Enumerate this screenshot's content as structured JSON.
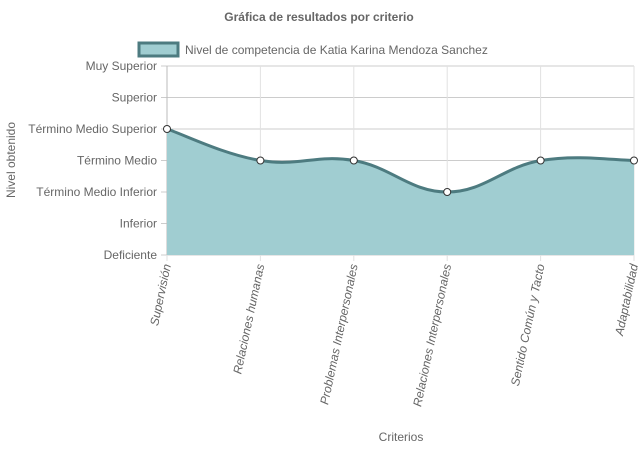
{
  "chart_data": {
    "type": "area",
    "title": "Gráfica de resultados por criterio",
    "xlabel": "Criterios",
    "ylabel": "Nivel obtenido",
    "categories": [
      "Supervisión",
      "Relaciones humanas",
      "Problemas Interpersonales",
      "Relaciones Interpersonales",
      "Sentido Común y Tacto",
      "Adaptabilidad"
    ],
    "y_levels": [
      "Deficiente",
      "Inferior",
      "Término Medio Inferior",
      "Término Medio",
      "Término Medio Superior",
      "Superior",
      "Muy Superior"
    ],
    "ylim": [
      0,
      6
    ],
    "series": [
      {
        "name": "Nivel de competencia de Katia Karina Mendoza  Sanchez",
        "values": [
          4,
          3,
          3,
          2,
          3,
          3
        ]
      }
    ],
    "grid": true,
    "legend_position": "top",
    "colors": {
      "fill": "#a0cdd1",
      "line": "#4d7b80",
      "grid": "#cccccc",
      "text": "#666666"
    }
  }
}
